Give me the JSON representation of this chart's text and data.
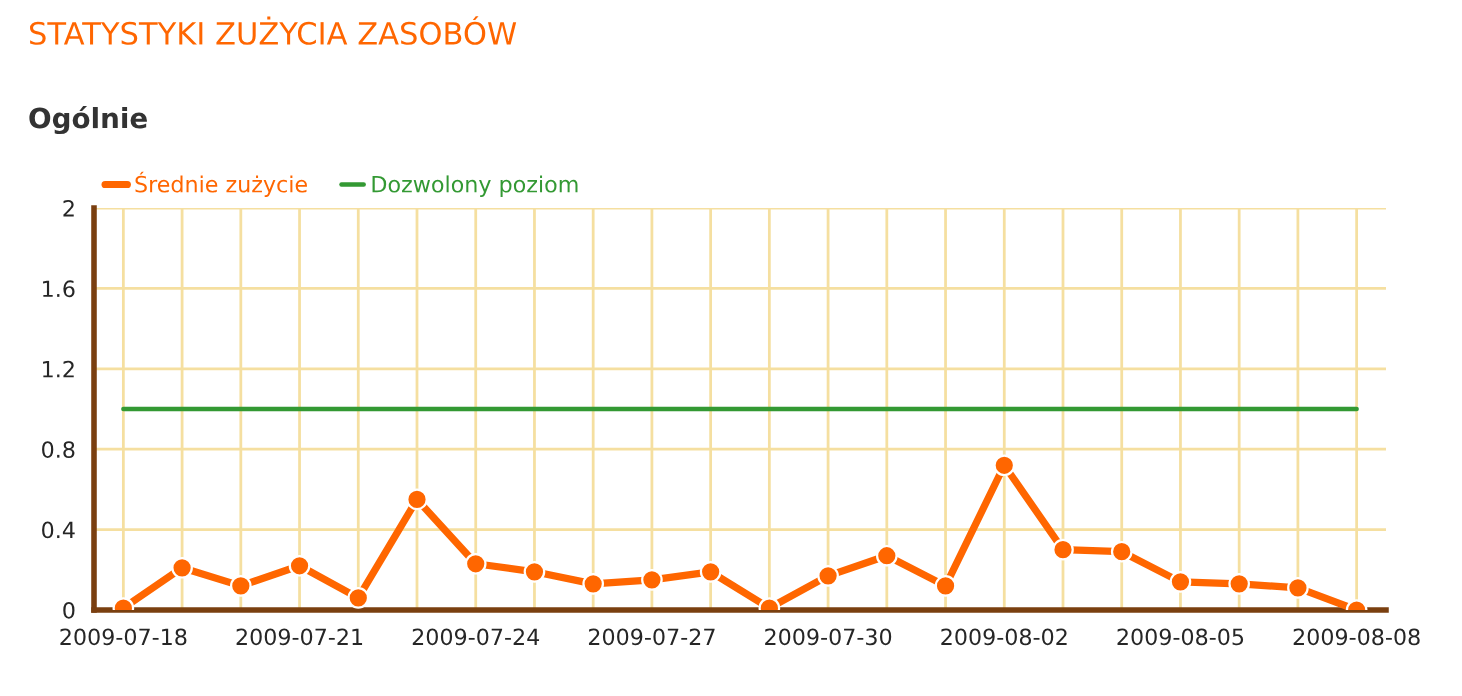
{
  "chart_data": {
    "type": "line",
    "title": "STATYSTYKI ZUŻYCIA ZASOBÓW",
    "subtitle": "Ogólnie",
    "x": [
      "2009-07-18",
      "2009-07-19",
      "2009-07-20",
      "2009-07-21",
      "2009-07-22",
      "2009-07-23",
      "2009-07-24",
      "2009-07-25",
      "2009-07-26",
      "2009-07-27",
      "2009-07-28",
      "2009-07-29",
      "2009-07-30",
      "2009-07-31",
      "2009-08-01",
      "2009-08-02",
      "2009-08-03",
      "2009-08-04",
      "2009-08-05",
      "2009-08-06",
      "2009-08-07",
      "2009-08-08"
    ],
    "series": [
      {
        "name": "Średnie zużycie",
        "color": "#ff6600",
        "marker": "circle",
        "values": [
          0.01,
          0.21,
          0.12,
          0.22,
          0.06,
          0.55,
          0.23,
          0.19,
          0.13,
          0.15,
          0.19,
          0.01,
          0.17,
          0.27,
          0.12,
          0.72,
          0.3,
          0.29,
          0.14,
          0.13,
          0.11,
          0.0
        ]
      },
      {
        "name": "Dozwolony poziom",
        "color": "#339933",
        "marker": "none",
        "x": [
          "2009-07-18",
          "2009-08-08"
        ],
        "values": [
          1,
          1
        ]
      }
    ],
    "xlim": [
      "2009-07-17T12:00",
      "2009-08-08T12:00"
    ],
    "xticks": [
      {
        "value": "2009-07-18",
        "label": "2009-07-18"
      },
      {
        "value": "2009-07-19",
        "label": null
      },
      {
        "value": "2009-07-20",
        "label": null
      },
      {
        "value": "2009-07-21",
        "label": "2009-07-21"
      },
      {
        "value": "2009-07-22",
        "label": null
      },
      {
        "value": "2009-07-23",
        "label": null
      },
      {
        "value": "2009-07-24",
        "label": "2009-07-24"
      },
      {
        "value": "2009-07-25",
        "label": null
      },
      {
        "value": "2009-07-26",
        "label": null
      },
      {
        "value": "2009-07-27",
        "label": "2009-07-27"
      },
      {
        "value": "2009-07-28",
        "label": null
      },
      {
        "value": "2009-07-29",
        "label": null
      },
      {
        "value": "2009-07-30",
        "label": "2009-07-30"
      },
      {
        "value": "2009-07-31",
        "label": null
      },
      {
        "value": "2009-08-01",
        "label": null
      },
      {
        "value": "2009-08-02",
        "label": "2009-08-02"
      },
      {
        "value": "2009-08-03",
        "label": null
      },
      {
        "value": "2009-08-04",
        "label": null
      },
      {
        "value": "2009-08-05",
        "label": "2009-08-05"
      },
      {
        "value": "2009-08-06",
        "label": null
      },
      {
        "value": "2009-08-07",
        "label": null
      },
      {
        "value": "2009-08-08",
        "label": "2009-08-08"
      }
    ],
    "ylim": [
      0,
      2
    ],
    "yticks": [
      0,
      0.4,
      0.8,
      1.2,
      1.6,
      2
    ],
    "grid": true,
    "legend": "top left",
    "line_style": "solid"
  }
}
